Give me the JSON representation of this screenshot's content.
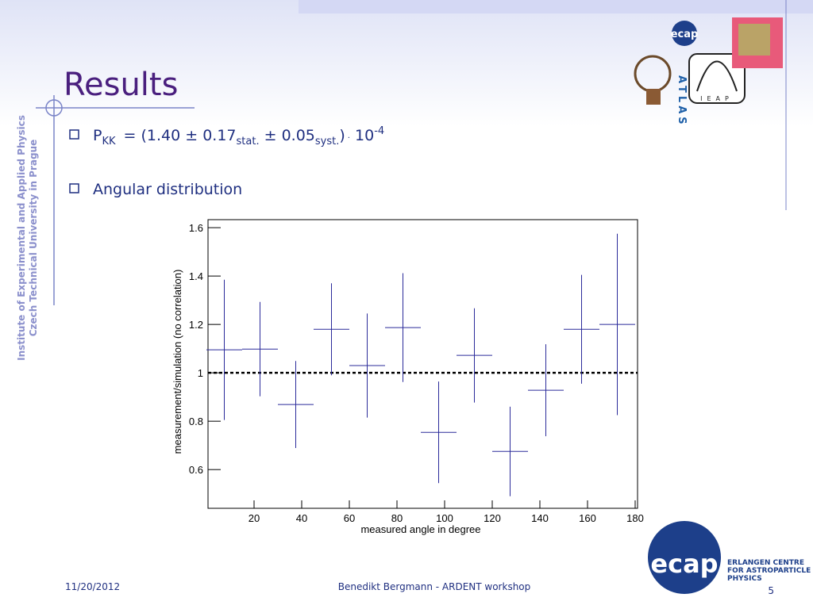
{
  "slide": {
    "title": "Results",
    "bullets": [
      {
        "parts": [
          "P",
          "KK",
          "= (1.40 ± 0.17",
          "stat.",
          " ± 0.05",
          "syst.",
          ")",
          "·",
          " 10",
          "-4"
        ]
      },
      {
        "parts": [
          "Angular distribution"
        ]
      }
    ],
    "side_text": [
      "Institute of Experimental and Applied Physics",
      "Czech Technical University in Prague"
    ],
    "logos": {
      "ecap_small": "ecap",
      "atlas": "ATLAS",
      "ieap": "IEAP",
      "ecap_big": "ecap",
      "ecap_name": [
        "ERLANGEN CENTRE",
        "FOR ASTROPARTICLE",
        "PHYSICS"
      ]
    },
    "footer": {
      "date": "11/20/2012",
      "center": "Benedikt Bergmann - ARDENT workshop",
      "page": "5"
    }
  },
  "chart_data": {
    "type": "errorbar",
    "x_label": "measured angle in degree",
    "y_label": "measurement/simulation (no correlation)",
    "x": [
      7.5,
      22.5,
      37.5,
      52.5,
      67.5,
      82.5,
      97.5,
      112.5,
      127.5,
      142.5,
      157.5,
      172.5
    ],
    "xerr": [
      7.5,
      7.5,
      7.5,
      7.5,
      7.5,
      7.5,
      7.5,
      7.5,
      7.5,
      7.5,
      7.5,
      7.5
    ],
    "values": [
      1.095,
      1.098,
      0.869,
      1.18,
      1.03,
      1.187,
      0.754,
      1.072,
      0.675,
      0.928,
      1.18,
      1.2
    ],
    "yerr": [
      0.29,
      0.195,
      0.18,
      0.19,
      0.215,
      0.225,
      0.21,
      0.195,
      0.185,
      0.19,
      0.225,
      0.375
    ],
    "color": "#2b2b9a",
    "reference_line": 1,
    "xlim": [
      0,
      180
    ],
    "ylim": [
      0.44,
      1.62
    ],
    "xticks": [
      20,
      40,
      60,
      80,
      100,
      120,
      140,
      160,
      180
    ],
    "yticks": [
      0.6,
      0.8,
      1,
      1.2,
      1.4,
      1.6
    ]
  }
}
